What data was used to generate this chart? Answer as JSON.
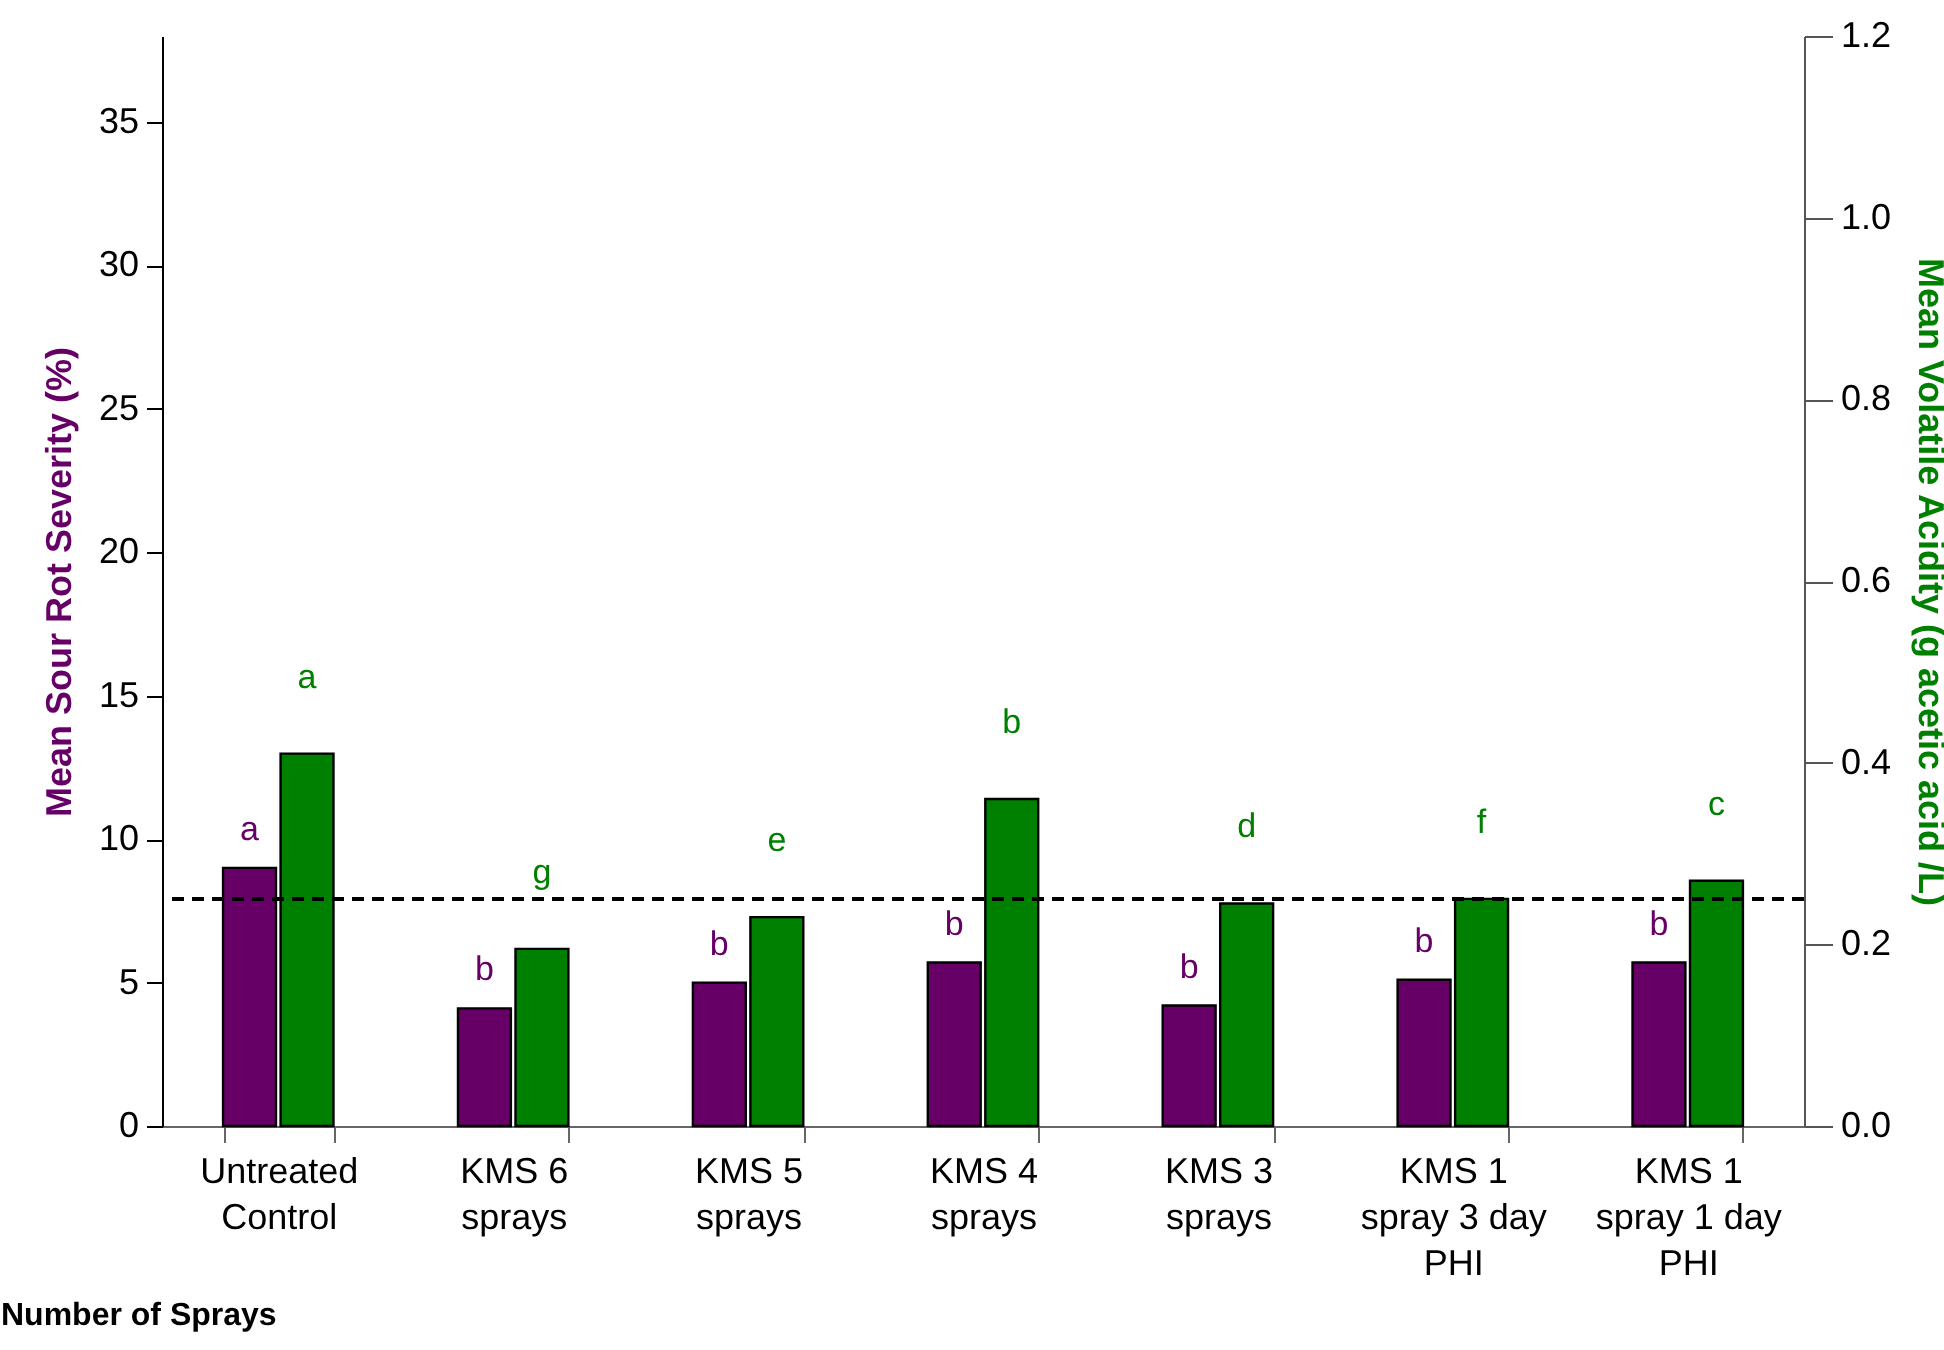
{
  "chart_data": {
    "type": "bar",
    "xlabel": "Number of Sprays",
    "ylabel": "Mean Sour Rot Severity (%)",
    "y2label": "Mean Volatile Acidity (g acetic acid /L)",
    "categories": [
      "Untreated\nControl",
      "KMS 6\nsprays",
      "KMS 5\nsprays",
      "KMS 4\nsprays",
      "KMS 3\nsprays",
      "KMS 1\nspray 3 day\nPHI",
      "KMS 1\nspray 1 day\nPHI"
    ],
    "series": [
      {
        "color": "#660066",
        "values": [
          9.0,
          4.1,
          5.0,
          5.7,
          4.2,
          5.1,
          5.7
        ],
        "value_labels": [
          "a",
          "b",
          "b",
          "b",
          "b",
          "b",
          "b"
        ]
      },
      {
        "color": "#008000",
        "axis": "y2",
        "values": [
          0.41,
          0.195,
          0.23,
          0.36,
          0.245,
          0.25,
          0.27
        ],
        "value_labels": [
          "a",
          "g",
          "e",
          "b",
          "d",
          "f",
          "c"
        ]
      }
    ],
    "ylim": [
      0,
      38
    ],
    "yticks": [
      0,
      5,
      10,
      15,
      20,
      25,
      30,
      35
    ],
    "y2lim": [
      0,
      1.2
    ],
    "y2ticks": [
      {
        "value": 0,
        "label": "0.0"
      },
      0.2,
      0.4,
      0.6,
      0.8,
      {
        "value": 1,
        "label": "1.0"
      },
      1.2
    ],
    "ref_lines": [
      {
        "axis": "y2",
        "value": 0.25,
        "color": "#000000",
        "line_style": "dashed"
      }
    ],
    "grid": false
  }
}
